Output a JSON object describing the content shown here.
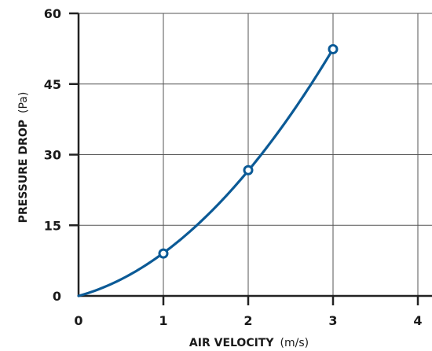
{
  "chart_data": {
    "type": "line",
    "x": [
      0,
      1,
      2,
      3
    ],
    "series": [
      {
        "values": [
          0,
          9,
          26.7,
          52.4
        ],
        "markers": [
          false,
          true,
          true,
          true
        ]
      }
    ],
    "xlabel": {
      "bold": "AIR VELOCITY",
      "unit": "(m/s)"
    },
    "ylabel": {
      "bold": "PRESSURE DROP",
      "unit": "(Pa)"
    },
    "xlim": [
      0,
      4.2
    ],
    "ylim": [
      0,
      60
    ],
    "xticks": [
      "0",
      "1",
      "2",
      "3",
      "4"
    ],
    "yticks": [
      "0",
      "15",
      "30",
      "45",
      "60"
    ],
    "grid": true,
    "line_color": "#0b5a96",
    "grid_color": "#555555"
  }
}
